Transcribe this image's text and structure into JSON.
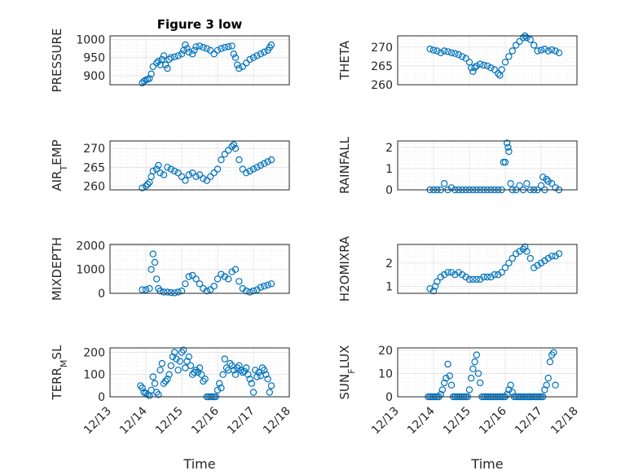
{
  "chart_data": [
    {
      "type": "scatter",
      "title": "Figure 3 low",
      "ylabel": "PRESSURE",
      "xlabel": "",
      "x_ticklabels": [],
      "yticks": [
        900,
        950,
        1000
      ],
      "ylim": [
        875,
        1010
      ],
      "x": [
        13.9,
        13.95,
        14.0,
        14.05,
        14.1,
        14.15,
        14.2,
        14.3,
        14.35,
        14.4,
        14.45,
        14.5,
        14.55,
        14.6,
        14.65,
        14.7,
        14.8,
        14.9,
        15.0,
        15.05,
        15.1,
        15.15,
        15.2,
        15.3,
        15.35,
        15.4,
        15.5,
        15.6,
        15.7,
        15.8,
        15.9,
        16.0,
        16.1,
        16.2,
        16.3,
        16.4,
        16.45,
        16.5,
        16.55,
        16.6,
        16.7,
        16.8,
        16.9,
        17.0,
        17.1,
        17.2,
        17.3,
        17.4,
        17.45,
        17.5
      ],
      "y": [
        880,
        885,
        888,
        890,
        892,
        905,
        925,
        935,
        940,
        930,
        945,
        955,
        930,
        920,
        945,
        950,
        952,
        955,
        960,
        970,
        985,
        975,
        965,
        960,
        970,
        980,
        982,
        978,
        975,
        970,
        960,
        970,
        975,
        978,
        980,
        982,
        960,
        950,
        930,
        920,
        925,
        935,
        945,
        950,
        955,
        960,
        965,
        970,
        978,
        985
      ]
    },
    {
      "type": "scatter",
      "title": "",
      "ylabel": "THETA",
      "xlabel": "",
      "x_ticklabels": [],
      "yticks": [
        260,
        265,
        270
      ],
      "ylim": [
        260,
        273
      ],
      "x": [
        13.9,
        14.0,
        14.1,
        14.2,
        14.3,
        14.4,
        14.5,
        14.6,
        14.7,
        14.8,
        14.9,
        15.0,
        15.05,
        15.1,
        15.15,
        15.2,
        15.3,
        15.4,
        15.5,
        15.6,
        15.7,
        15.8,
        15.85,
        15.9,
        16.0,
        16.1,
        16.2,
        16.3,
        16.4,
        16.5,
        16.55,
        16.6,
        16.7,
        16.8,
        16.9,
        17.0,
        17.1,
        17.2,
        17.3,
        17.4,
        17.5
      ],
      "y": [
        269.5,
        269.2,
        269.0,
        268.5,
        269.0,
        268.8,
        268.5,
        268.3,
        268.0,
        267.5,
        267.0,
        266.0,
        264.5,
        263.5,
        264.5,
        265.0,
        265.5,
        265.2,
        265.0,
        264.5,
        264.0,
        263.0,
        262.5,
        264.0,
        266.0,
        267.5,
        269.0,
        270.5,
        271.5,
        272.5,
        273.0,
        272.5,
        272.0,
        270.5,
        269.0,
        269.2,
        269.5,
        269.0,
        269.3,
        269.0,
        268.5
      ]
    },
    {
      "type": "scatter",
      "title": "",
      "ylabel": "AIR_TEMP",
      "xlabel": "",
      "x_ticklabels": [],
      "yticks": [
        260,
        265,
        270
      ],
      "ylim": [
        259,
        272
      ],
      "x": [
        13.9,
        14.0,
        14.05,
        14.1,
        14.15,
        14.2,
        14.3,
        14.35,
        14.4,
        14.5,
        14.6,
        14.7,
        14.8,
        14.9,
        15.0,
        15.1,
        15.2,
        15.3,
        15.4,
        15.5,
        15.6,
        15.7,
        15.8,
        15.9,
        16.0,
        16.1,
        16.2,
        16.3,
        16.4,
        16.45,
        16.5,
        16.6,
        16.7,
        16.8,
        16.9,
        17.0,
        17.1,
        17.2,
        17.3,
        17.4,
        17.5
      ],
      "y": [
        259.5,
        260.0,
        260.5,
        261.0,
        262.5,
        264.0,
        264.5,
        265.5,
        263.5,
        263.0,
        265.0,
        264.5,
        264.0,
        263.5,
        262.5,
        261.5,
        263.0,
        263.5,
        262.5,
        263.0,
        262.0,
        261.5,
        262.5,
        263.5,
        264.5,
        267.0,
        268.5,
        269.5,
        270.5,
        271.0,
        270.0,
        267.0,
        264.5,
        263.5,
        264.0,
        264.5,
        265.0,
        265.5,
        266.0,
        266.5,
        267.0
      ]
    },
    {
      "type": "scatter",
      "title": "",
      "ylabel": "RAINFALL",
      "xlabel": "",
      "x_ticklabels": [],
      "yticks": [
        0,
        1,
        2
      ],
      "ylim": [
        0,
        2.3
      ],
      "x": [
        13.9,
        14.0,
        14.1,
        14.2,
        14.3,
        14.4,
        14.5,
        14.6,
        14.7,
        14.8,
        14.9,
        15.0,
        15.1,
        15.2,
        15.3,
        15.4,
        15.5,
        15.6,
        15.7,
        15.8,
        15.9,
        15.95,
        16.0,
        16.05,
        16.08,
        16.1,
        16.15,
        16.2,
        16.3,
        16.4,
        16.5,
        16.6,
        16.7,
        16.8,
        16.9,
        17.0,
        17.05,
        17.1,
        17.15,
        17.2,
        17.3,
        17.4,
        17.5
      ],
      "y": [
        0,
        0,
        0,
        0,
        0.3,
        0,
        0.1,
        0,
        0,
        0,
        0,
        0,
        0,
        0,
        0,
        0,
        0,
        0,
        0,
        0,
        0,
        1.3,
        1.3,
        2.2,
        2.0,
        1.8,
        0.3,
        0,
        0,
        0.2,
        0,
        0.3,
        0,
        0,
        0,
        0.2,
        0.6,
        0,
        0.5,
        0.4,
        0.3,
        0.1,
        0
      ]
    },
    {
      "type": "scatter",
      "title": "",
      "ylabel": "MIXDEPTH",
      "xlabel": "",
      "x_ticklabels": [],
      "yticks": [
        0,
        1000,
        2000
      ],
      "ylim": [
        0,
        2050
      ],
      "x": [
        13.9,
        14.0,
        14.1,
        14.15,
        14.2,
        14.25,
        14.3,
        14.35,
        14.4,
        14.5,
        14.6,
        14.7,
        14.8,
        14.9,
        15.0,
        15.1,
        15.2,
        15.3,
        15.4,
        15.5,
        15.6,
        15.7,
        15.8,
        15.9,
        16.0,
        16.1,
        16.2,
        16.3,
        16.4,
        16.5,
        16.6,
        16.7,
        16.8,
        16.9,
        17.0,
        17.1,
        17.2,
        17.3,
        17.4,
        17.5
      ],
      "y": [
        150,
        150,
        200,
        1000,
        1650,
        1300,
        600,
        200,
        100,
        50,
        50,
        30,
        20,
        50,
        100,
        400,
        700,
        750,
        600,
        400,
        200,
        100,
        150,
        300,
        600,
        800,
        700,
        600,
        900,
        1000,
        500,
        200,
        100,
        50,
        100,
        150,
        250,
        300,
        350,
        400
      ]
    },
    {
      "type": "scatter",
      "title": "",
      "ylabel": "H2OMIXRA",
      "xlabel": "",
      "x_ticklabels": [],
      "yticks": [
        1,
        2
      ],
      "ylim": [
        0.7,
        2.8
      ],
      "x": [
        13.9,
        14.0,
        14.05,
        14.1,
        14.2,
        14.3,
        14.4,
        14.5,
        14.6,
        14.7,
        14.8,
        14.9,
        15.0,
        15.1,
        15.2,
        15.3,
        15.4,
        15.5,
        15.6,
        15.7,
        15.8,
        15.9,
        16.0,
        16.1,
        16.2,
        16.3,
        16.4,
        16.5,
        16.55,
        16.6,
        16.7,
        16.8,
        16.9,
        17.0,
        17.1,
        17.2,
        17.3,
        17.4,
        17.5
      ],
      "y": [
        0.9,
        0.8,
        1.0,
        1.2,
        1.4,
        1.5,
        1.6,
        1.6,
        1.5,
        1.6,
        1.5,
        1.4,
        1.3,
        1.3,
        1.3,
        1.3,
        1.4,
        1.4,
        1.4,
        1.5,
        1.5,
        1.6,
        1.8,
        2.0,
        2.2,
        2.4,
        2.5,
        2.6,
        2.7,
        2.5,
        2.2,
        1.8,
        1.9,
        2.0,
        2.1,
        2.2,
        2.3,
        2.3,
        2.4
      ]
    },
    {
      "type": "scatter",
      "title": "",
      "ylabel": "TERR_MSL",
      "xlabel": "Time",
      "x_ticklabels": [
        "12/13",
        "12/14",
        "12/15",
        "12/16",
        "12/17",
        "12/18"
      ],
      "yticks": [
        0,
        100,
        200
      ],
      "ylim": [
        0,
        220
      ],
      "x": [
        13.85,
        13.9,
        13.95,
        14.0,
        14.05,
        14.1,
        14.15,
        14.2,
        14.25,
        14.3,
        14.35,
        14.4,
        14.45,
        14.5,
        14.55,
        14.6,
        14.65,
        14.7,
        14.75,
        14.8,
        14.85,
        14.9,
        14.95,
        15.0,
        15.05,
        15.1,
        15.15,
        15.2,
        15.25,
        15.3,
        15.35,
        15.4,
        15.45,
        15.5,
        15.55,
        15.6,
        15.65,
        15.7,
        15.75,
        15.8,
        15.85,
        15.9,
        15.95,
        16.0,
        16.05,
        16.1,
        16.15,
        16.2,
        16.25,
        16.3,
        16.35,
        16.4,
        16.45,
        16.5,
        16.55,
        16.6,
        16.65,
        16.7,
        16.75,
        16.8,
        16.85,
        16.9,
        16.95,
        17.0,
        17.05,
        17.1,
        17.15,
        17.2,
        17.25,
        17.3,
        17.35,
        17.4,
        17.45,
        17.5
      ],
      "y": [
        50,
        40,
        20,
        15,
        10,
        5,
        30,
        90,
        60,
        20,
        10,
        120,
        150,
        60,
        70,
        80,
        100,
        140,
        180,
        200,
        170,
        120,
        160,
        200,
        210,
        130,
        160,
        180,
        140,
        100,
        110,
        120,
        110,
        130,
        100,
        70,
        80,
        0,
        0,
        0,
        0,
        0,
        0,
        30,
        60,
        40,
        100,
        170,
        130,
        120,
        150,
        140,
        120,
        100,
        130,
        140,
        120,
        110,
        115,
        130,
        100,
        80,
        60,
        20,
        120,
        90,
        110,
        95,
        130,
        120,
        100,
        80,
        20,
        50
      ]
    },
    {
      "type": "scatter",
      "title": "",
      "ylabel": "SUN_FLUX",
      "xlabel": "Time",
      "x_ticklabels": [
        "12/13",
        "12/14",
        "12/15",
        "12/16",
        "12/17",
        "12/18"
      ],
      "yticks": [
        0,
        10,
        20
      ],
      "ylim": [
        0,
        21
      ],
      "x": [
        13.85,
        13.9,
        13.95,
        14.0,
        14.05,
        14.1,
        14.15,
        14.2,
        14.25,
        14.3,
        14.35,
        14.4,
        14.45,
        14.5,
        14.55,
        14.6,
        14.65,
        14.7,
        14.75,
        14.8,
        14.85,
        14.9,
        14.95,
        15.0,
        15.05,
        15.1,
        15.15,
        15.2,
        15.25,
        15.3,
        15.35,
        15.4,
        15.45,
        15.5,
        15.55,
        15.6,
        15.65,
        15.7,
        15.75,
        15.8,
        15.85,
        15.9,
        15.95,
        16.0,
        16.05,
        16.1,
        16.15,
        16.2,
        16.25,
        16.3,
        16.35,
        16.4,
        16.45,
        16.5,
        16.55,
        16.6,
        16.65,
        16.7,
        16.75,
        16.8,
        16.85,
        16.9,
        16.95,
        17.0,
        17.05,
        17.1,
        17.15,
        17.2,
        17.25,
        17.3,
        17.35,
        17.4
      ],
      "y": [
        0,
        0,
        0,
        0,
        0,
        0,
        0,
        1,
        3,
        6,
        8,
        14,
        9,
        5,
        0,
        0,
        0,
        0,
        0,
        0,
        0,
        0,
        0,
        3,
        8,
        12,
        15,
        18,
        10,
        6,
        0,
        0,
        0,
        0,
        0,
        0,
        0,
        0,
        0,
        0,
        0,
        0,
        0,
        0,
        1,
        3,
        5,
        2,
        0,
        0,
        0,
        0,
        0,
        0,
        0,
        0,
        0,
        0,
        0,
        0,
        0,
        0,
        0,
        0,
        0,
        3,
        5,
        8,
        15,
        18,
        19,
        5
      ]
    }
  ]
}
